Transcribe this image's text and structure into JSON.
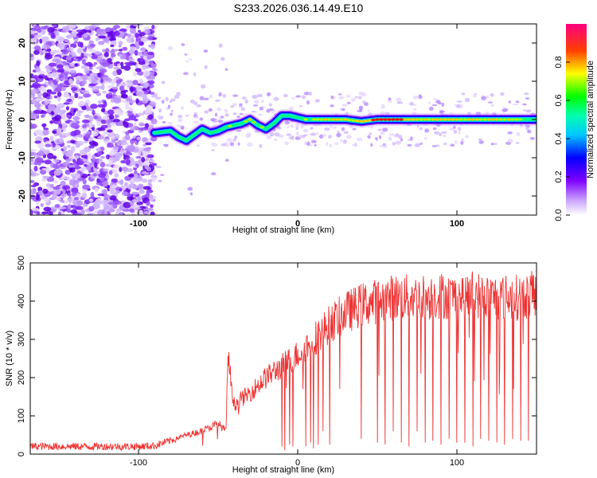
{
  "figure": {
    "title": "S233.2026.036.14.49.E10"
  },
  "chart_data": [
    {
      "type": "heatmap",
      "title": "",
      "xlabel": "Height of straight line (km)",
      "ylabel": "Frequency (Hz)",
      "xlim": [
        -168,
        150
      ],
      "ylim": [
        -25,
        25
      ],
      "xticks": [
        -100,
        0,
        100
      ],
      "yticks": [
        -20,
        -10,
        0,
        10,
        20
      ],
      "colorbar": {
        "label": "Normalized spectral amplitude",
        "range": [
          0.0,
          1.0
        ],
        "ticks": [
          "0.0",
          "0.2",
          "0.4",
          "0.6",
          "0.8"
        ],
        "colormap": [
          "#ffffff",
          "#a000ff",
          "#0000ff",
          "#00ffff",
          "#00ff00",
          "#ffff00",
          "#ff0000",
          "#ff0080"
        ]
      },
      "ridge_x": [
        -90,
        -80,
        -75,
        -70,
        -65,
        -60,
        -55,
        -50,
        -45,
        -40,
        -35,
        -30,
        -25,
        -20,
        -15,
        -10,
        -5,
        0,
        5,
        10,
        20,
        30,
        40,
        50,
        60,
        70,
        80,
        90,
        100,
        110,
        120,
        130,
        140,
        150
      ],
      "ridge_y": [
        -3.5,
        -3,
        -4.5,
        -5.5,
        -4,
        -2.5,
        -3.5,
        -3,
        -2,
        -1.5,
        -1,
        0,
        -1.5,
        -2.5,
        -1,
        1,
        1,
        0.5,
        0,
        0,
        0,
        0,
        -0.5,
        0,
        0,
        0,
        0,
        0,
        0,
        0,
        0,
        0,
        0,
        0
      ],
      "ridge_intensity": [
        0.4,
        0.5,
        0.5,
        0.5,
        0.5,
        0.5,
        0.55,
        0.6,
        0.6,
        0.65,
        0.7,
        0.8,
        0.7,
        0.6,
        0.6,
        0.55,
        0.6,
        0.6,
        0.7,
        0.75,
        0.8,
        0.8,
        0.75,
        1.0,
        1.0,
        0.9,
        0.8,
        0.8,
        0.75,
        0.8,
        0.75,
        0.75,
        0.7,
        0.6
      ]
    },
    {
      "type": "line",
      "title": "",
      "xlabel": "Height of straight line (km)",
      "ylabel": "SNR (10 * v/v)",
      "xlim": [
        -168,
        150
      ],
      "ylim": [
        0,
        500
      ],
      "xticks": [
        -100,
        0,
        100
      ],
      "yticks": [
        0,
        100,
        200,
        300,
        400,
        500
      ],
      "series": [
        {
          "name": "SNR",
          "color": "#ee3333",
          "envelope_x": [
            -168,
            -100,
            -90,
            -80,
            -70,
            -60,
            -55,
            -50,
            -45,
            -44,
            -40,
            -30,
            -20,
            -10,
            0,
            10,
            20,
            30,
            40,
            50,
            60,
            70,
            80,
            90,
            100,
            110,
            120,
            130,
            140,
            150
          ],
          "envelope_y": [
            20,
            20,
            22,
            35,
            50,
            60,
            70,
            80,
            60,
            260,
            130,
            160,
            200,
            230,
            260,
            300,
            340,
            370,
            390,
            400,
            410,
            410,
            410,
            415,
            410,
            420,
            410,
            410,
            410,
            420
          ],
          "dropout_x": [
            -10,
            -8,
            -5,
            -3,
            5,
            8,
            10,
            13,
            16,
            20,
            40,
            50,
            55,
            60,
            65,
            70,
            75,
            80,
            85,
            90,
            95,
            100,
            105,
            110,
            115,
            120,
            125,
            130,
            135,
            140,
            145
          ],
          "dropout_y": [
            20,
            10,
            25,
            20,
            20,
            30,
            15,
            25,
            60,
            25,
            40,
            30,
            25,
            60,
            30,
            20,
            60,
            30,
            35,
            25,
            40,
            30,
            30,
            20,
            40,
            35,
            30,
            25,
            40,
            35,
            35
          ]
        }
      ]
    }
  ]
}
